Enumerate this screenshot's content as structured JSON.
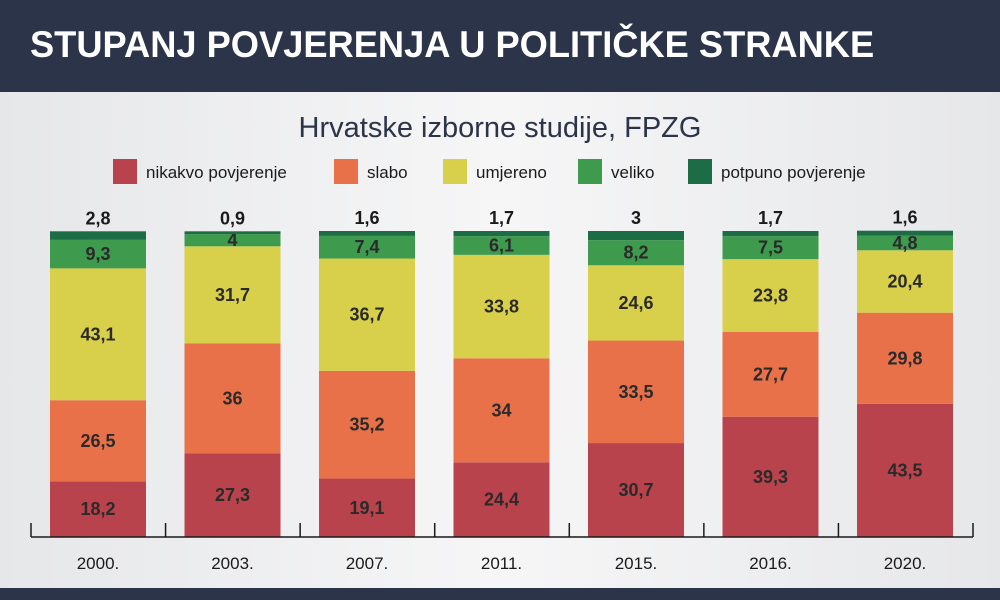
{
  "title": "STUPANJ POVJERENJA U POLITIČKE STRANKE",
  "chart_data": {
    "type": "bar",
    "stacked": true,
    "subtitle": "Hrvatske izborne studije, FPZG",
    "categories": [
      "2000.",
      "2003.",
      "2007.",
      "2011.",
      "2015.",
      "2016.",
      "2020."
    ],
    "series": [
      {
        "name": "nikakvo povjerenje",
        "color": "#b9434c",
        "values": [
          18.2,
          27.3,
          19.1,
          24.4,
          30.7,
          39.3,
          43.5
        ],
        "labels": [
          "18,2",
          "27,3",
          "19,1",
          "24,4",
          "30,7",
          "39,3",
          "43,5"
        ]
      },
      {
        "name": "slabo",
        "color": "#e9714a",
        "values": [
          26.5,
          36,
          35.2,
          34,
          33.5,
          27.7,
          29.8
        ],
        "labels": [
          "26,5",
          "36",
          "35,2",
          "34",
          "33,5",
          "27,7",
          "29,8"
        ]
      },
      {
        "name": "umjereno",
        "color": "#d8cf4a",
        "values": [
          43.1,
          31.7,
          36.7,
          33.8,
          24.6,
          23.8,
          20.4
        ],
        "labels": [
          "43,1",
          "31,7",
          "36,7",
          "33,8",
          "24,6",
          "23,8",
          "20,4"
        ]
      },
      {
        "name": "veliko",
        "color": "#3e9a4d",
        "values": [
          9.3,
          4,
          7.4,
          6.1,
          8.2,
          7.5,
          4.8
        ],
        "labels": [
          "9,3",
          "4",
          "7,4",
          "6,1",
          "8,2",
          "7,5",
          "4,8"
        ]
      },
      {
        "name": "potpuno povjerenje",
        "color": "#1c6c45",
        "values": [
          2.8,
          0.9,
          1.6,
          1.7,
          3,
          1.7,
          1.6
        ],
        "labels": [
          "2,8",
          "0,9",
          "1,6",
          "1,7",
          "3",
          "1,7",
          "1,6"
        ]
      }
    ],
    "ylim": [
      0,
      100
    ],
    "legend_position": "top"
  }
}
